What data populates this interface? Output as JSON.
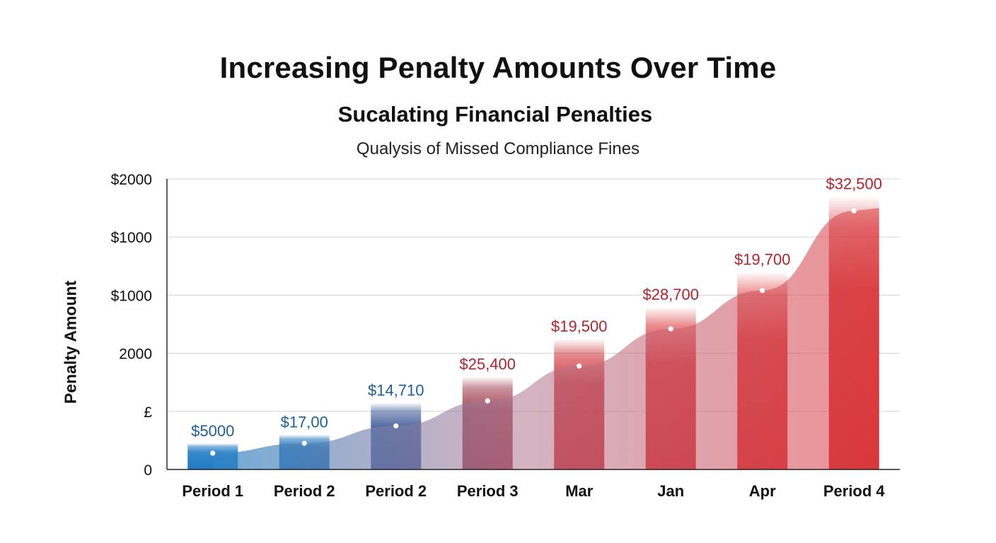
{
  "chart_data": {
    "type": "bar",
    "title": "Increasing Penalty Amounts Over Time",
    "subtitle": "Sucalating Financial Penalties",
    "caption": "Qualysis of Missed Compliance Fines",
    "xlabel": "",
    "ylabel": "Penalty Amount",
    "y_tick_labels": [
      "0",
      "£",
      "2000",
      "$1000",
      "$1000",
      "$2000"
    ],
    "ylim": [
      0,
      5
    ],
    "grid": true,
    "categories": [
      "Period 1",
      "Period 2",
      "Period 2",
      "Period 3",
      "Mar",
      "Jan",
      "Apr",
      "Period 4"
    ],
    "values": [
      0.45,
      0.6,
      1.15,
      1.6,
      2.25,
      2.8,
      3.4,
      4.7
    ],
    "trend_values": [
      0.28,
      0.45,
      0.75,
      1.18,
      1.78,
      2.42,
      3.08,
      4.45
    ],
    "data_labels": [
      "$5000",
      "$17,00",
      "$14,710",
      "$25,400",
      "$19,500",
      "$28,700",
      "$19,700",
      "$32,500"
    ],
    "bar_colors": [
      "#1f7bc4",
      "#2277bd",
      "#445e9a",
      "#9f3e50",
      "#cc2c32",
      "#d8252a",
      "#da2326",
      "#d01f22"
    ],
    "label_colors": [
      "#1d5f9a",
      "#1d5f9a",
      "#1d5f9a",
      "#b3232b",
      "#b3232b",
      "#b3232b",
      "#b3232b",
      "#b3232b"
    ],
    "trend_color_start": "#2e86c8",
    "trend_color_end": "#e0474a"
  }
}
